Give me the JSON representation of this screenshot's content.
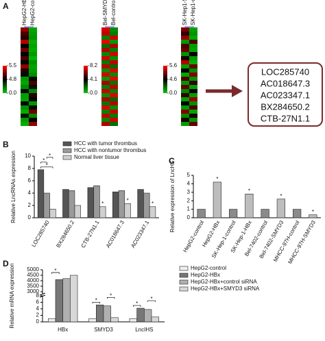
{
  "panel_labels": [
    "A",
    "B",
    "C",
    "D"
  ],
  "highlighted_lncrnas": [
    "LOC285740",
    "AC018647.3",
    "AC023347.1",
    "BX284650.2",
    "CTB-27N1.1"
  ],
  "chart_data": [
    {
      "type": "heatmap",
      "columns": [
        "HepG2-HBx",
        "HepG2-control"
      ],
      "zticks": [
        5.5,
        4.8,
        {
          "value": 0,
          "label": "0.0"
        }
      ],
      "values": [
        [
          5.2,
          0.8
        ],
        [
          5.0,
          1.0
        ],
        [
          4.9,
          1.2
        ],
        [
          5.3,
          0.6
        ],
        [
          4.8,
          0.9
        ],
        [
          5.1,
          0.7
        ],
        [
          4.7,
          1.1
        ],
        [
          5.0,
          0.5
        ],
        [
          4.6,
          1.3
        ],
        [
          5.2,
          0.9
        ],
        [
          4.9,
          1.0
        ],
        [
          4.5,
          1.4
        ],
        [
          1.2,
          4.6
        ],
        [
          0.8,
          5.0
        ],
        [
          1.5,
          4.4
        ],
        [
          4.4,
          1.6
        ],
        [
          1.0,
          4.9
        ],
        [
          0.9,
          4.7
        ],
        [
          4.6,
          1.2
        ],
        [
          1.3,
          4.5
        ],
        [
          0.7,
          5.1
        ],
        [
          4.3,
          1.5
        ],
        [
          1.1,
          4.8
        ],
        [
          0.6,
          5.2
        ]
      ]
    },
    {
      "type": "heatmap",
      "columns": [
        "Bel-SMYD3",
        "Bel-control"
      ],
      "zticks": [
        8.2,
        4.1,
        {
          "value": 0,
          "label": "0.0"
        }
      ],
      "values": [
        [
          7.6,
          1.2
        ],
        [
          7.2,
          1.6
        ],
        [
          1.4,
          7.4
        ],
        [
          7.8,
          1.0
        ],
        [
          1.8,
          6.9
        ],
        [
          7.0,
          1.5
        ],
        [
          1.3,
          7.5
        ],
        [
          7.4,
          1.1
        ],
        [
          1.6,
          7.1
        ],
        [
          7.1,
          1.9
        ],
        [
          1.2,
          7.6
        ],
        [
          7.5,
          1.3
        ],
        [
          1.0,
          7.8
        ],
        [
          6.8,
          1.7
        ],
        [
          1.5,
          7.2
        ],
        [
          7.3,
          1.4
        ],
        [
          1.1,
          7.7
        ],
        [
          6.9,
          2.0
        ],
        [
          1.7,
          7.0
        ],
        [
          7.6,
          1.2
        ],
        [
          1.4,
          7.3
        ],
        [
          7.2,
          1.6
        ],
        [
          1.3,
          7.4
        ],
        [
          7.0,
          1.8
        ]
      ]
    },
    {
      "type": "heatmap",
      "columns": [
        "SK-Hep1-SMYD3",
        "SK-Hep1-control"
      ],
      "zticks": [
        5.6,
        4.6,
        {
          "value": 0,
          "label": "0.0"
        }
      ],
      "values": [
        [
          5.1,
          0.9
        ],
        [
          4.8,
          1.2
        ],
        [
          5.2,
          0.7
        ],
        [
          1.1,
          4.9
        ],
        [
          4.9,
          1.0
        ],
        [
          5.0,
          0.8
        ],
        [
          1.3,
          4.6
        ],
        [
          4.7,
          1.1
        ],
        [
          5.3,
          0.6
        ],
        [
          1.0,
          5.0
        ],
        [
          4.6,
          1.4
        ],
        [
          0.8,
          5.1
        ],
        [
          4.9,
          1.2
        ],
        [
          1.2,
          4.8
        ],
        [
          5.0,
          0.9
        ],
        [
          1.5,
          4.5
        ],
        [
          4.8,
          1.0
        ],
        [
          0.9,
          5.2
        ],
        [
          4.5,
          1.3
        ],
        [
          1.1,
          4.9
        ],
        [
          5.1,
          0.8
        ],
        [
          1.4,
          4.7
        ],
        [
          4.7,
          1.2
        ],
        [
          1.0,
          5.0
        ]
      ]
    },
    {
      "type": "bar",
      "y_label": "Relative LncRNAs expression",
      "categories": [
        "LOC285740",
        "BX284650.2",
        "CTB-27N1.1",
        "AC018647.3",
        "AC023347.1"
      ],
      "series": [
        {
          "name": "HCC with tumor thrombus",
          "color": "#555555",
          "values": [
            7.8,
            4.6,
            4.9,
            4.2,
            4.6
          ]
        },
        {
          "name": "HCC with nontumor thrombus",
          "color": "#9a9a9a",
          "values": [
            4.0,
            4.4,
            5.2,
            4.4,
            4.0
          ]
        },
        {
          "name": "Normal liver tissue",
          "color": "#d0d0d0",
          "values": [
            1.4,
            2.0,
            1.8,
            2.3,
            1.8
          ]
        }
      ],
      "ylim": [
        0,
        10
      ],
      "yticks": [
        0,
        2,
        4,
        6,
        8,
        10
      ],
      "annotations": [
        {
          "text": "*",
          "category": 0,
          "series": [
            0,
            2
          ]
        },
        {
          "text": "*",
          "category": 0,
          "series": [
            0,
            1
          ]
        },
        {
          "text": "*",
          "category": 0,
          "series": [
            1,
            2
          ]
        },
        {
          "text": "*",
          "category": 2,
          "series": [
            2
          ]
        },
        {
          "text": "*",
          "category": 3,
          "series": [
            2
          ]
        },
        {
          "text": "*",
          "category": 4,
          "series": [
            2
          ]
        }
      ]
    },
    {
      "type": "bar",
      "y_label": "Relative expression of LncHS",
      "categories": [
        "HepG2-control",
        "HepG2-HBx",
        "SK-Hep-1-control",
        "SK-Hep-1-HBx",
        "Bel-7402-control",
        "Bel-7402-SMYD3",
        "MHCC-97H-control",
        "MHCC-97H-SMYD3"
      ],
      "values": [
        1.0,
        4.2,
        1.0,
        2.8,
        1.0,
        2.2,
        1.0,
        0.35
      ],
      "colors": [
        "#8a8a8a",
        "#bdbdbd",
        "#8a8a8a",
        "#bdbdbd",
        "#8a8a8a",
        "#bdbdbd",
        "#8a8a8a",
        "#bdbdbd"
      ],
      "ylim": [
        0,
        5
      ],
      "yticks": [
        0,
        1,
        2,
        3,
        4,
        5
      ],
      "annotations": [
        {
          "text": "*",
          "category": 1
        },
        {
          "text": "*",
          "category": 3
        },
        {
          "text": "*",
          "category": 5
        },
        {
          "text": "*",
          "category": 7
        }
      ]
    },
    {
      "type": "bar",
      "y_label": "Relative mRNA expression",
      "categories": [
        "HBx",
        "SMYD3",
        "LncIHS"
      ],
      "series": [
        {
          "name": "HepG2-control",
          "color": "#eeeeee",
          "values": [
            1.0,
            1.0,
            1.0
          ]
        },
        {
          "name": "HepG2-HBx",
          "color": "#777777",
          "values": [
            4100,
            5.2,
            4.2
          ]
        },
        {
          "name": "HepG2-HBx+control siRNA",
          "color": "#b0b0b0",
          "values": [
            4200,
            4.9,
            3.8
          ]
        },
        {
          "name": "HepG2-HBx+SMYD3 siRNA",
          "color": "#d8d8d8",
          "values": [
            4500,
            1.3,
            1.5
          ]
        }
      ],
      "ylim": [
        0,
        5000
      ],
      "ybreak": [
        8,
        3000
      ],
      "yticks": [
        0,
        2,
        4,
        6,
        8,
        3000,
        3500,
        4000,
        4500,
        5000
      ],
      "annotations": [
        {
          "text": "*",
          "category": 0,
          "series": [
            0,
            1
          ]
        },
        {
          "text": "*",
          "category": 1,
          "series": [
            0,
            1
          ]
        },
        {
          "text": "*",
          "category": 1,
          "series": [
            2,
            3
          ]
        },
        {
          "text": "*",
          "category": 2,
          "series": [
            0,
            1
          ]
        },
        {
          "text": "*",
          "category": 2,
          "series": [
            2,
            3
          ]
        }
      ]
    }
  ]
}
